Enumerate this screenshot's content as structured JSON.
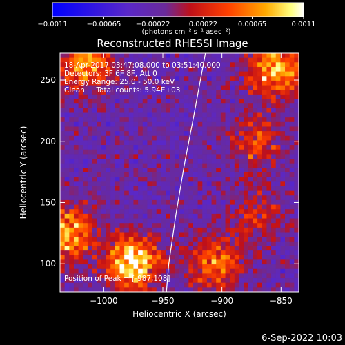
{
  "chart_data": {
    "type": "heatmap",
    "title": "Reconstructed RHESSI Image",
    "xlabel": "Heliocentric X (arcsec)",
    "ylabel": "Heliocentric Y (arcsec)",
    "xlim": [
      -1037,
      -835
    ],
    "ylim": [
      77,
      272
    ],
    "x_ticks": [
      -1000,
      -950,
      -900,
      -850
    ],
    "x_tick_labels": [
      "−1000",
      "−950",
      "−900",
      "−850"
    ],
    "y_ticks": [
      100,
      150,
      200,
      250
    ],
    "y_tick_labels": [
      "100",
      "150",
      "200",
      "250"
    ],
    "colorbar": {
      "range": [
        -0.0011,
        0.0011
      ],
      "tick_labels": [
        "−0.0011",
        "−0.00065",
        "−0.00022",
        "0.00022",
        "0.00065",
        "0.0011"
      ],
      "units": "(photons cm⁻² s⁻¹ asec⁻²)",
      "colors": [
        "#0000ff",
        "#5a28c8",
        "#6a2a9a",
        "#c01018",
        "#ff4000",
        "#ffaa00",
        "#ffff80",
        "#ffffff"
      ]
    },
    "info": [
      "18-Apr-2017 03:47:08.000 to 03:51:40.000",
      "Detectors: 3F 6F 8F, Att 0",
      "Energy Range: 25.0 - 50.0 keV",
      "Clean     Total counts: 5.94E+03"
    ],
    "peak_label": "Position of Peak = [-987,108]",
    "peak": {
      "x": -987,
      "y": 108
    },
    "hot_regions": [
      {
        "x": -975,
        "y": 100,
        "strength": 1.0
      },
      {
        "x": -1030,
        "y": 125,
        "strength": 0.8
      },
      {
        "x": -1015,
        "y": 265,
        "strength": 0.7
      },
      {
        "x": -855,
        "y": 260,
        "strength": 0.85
      },
      {
        "x": -905,
        "y": 100,
        "strength": 0.6
      },
      {
        "x": -870,
        "y": 200,
        "strength": 0.45
      },
      {
        "x": -870,
        "y": 140,
        "strength": 0.35
      }
    ],
    "limb": [
      {
        "x": -947,
        "y": 77
      },
      {
        "x": -945,
        "y": 100
      },
      {
        "x": -939,
        "y": 140
      },
      {
        "x": -932,
        "y": 180
      },
      {
        "x": -924,
        "y": 220
      },
      {
        "x": -914,
        "y": 272
      }
    ]
  },
  "footer": {
    "date": "6-Sep-2022 10:03"
  }
}
